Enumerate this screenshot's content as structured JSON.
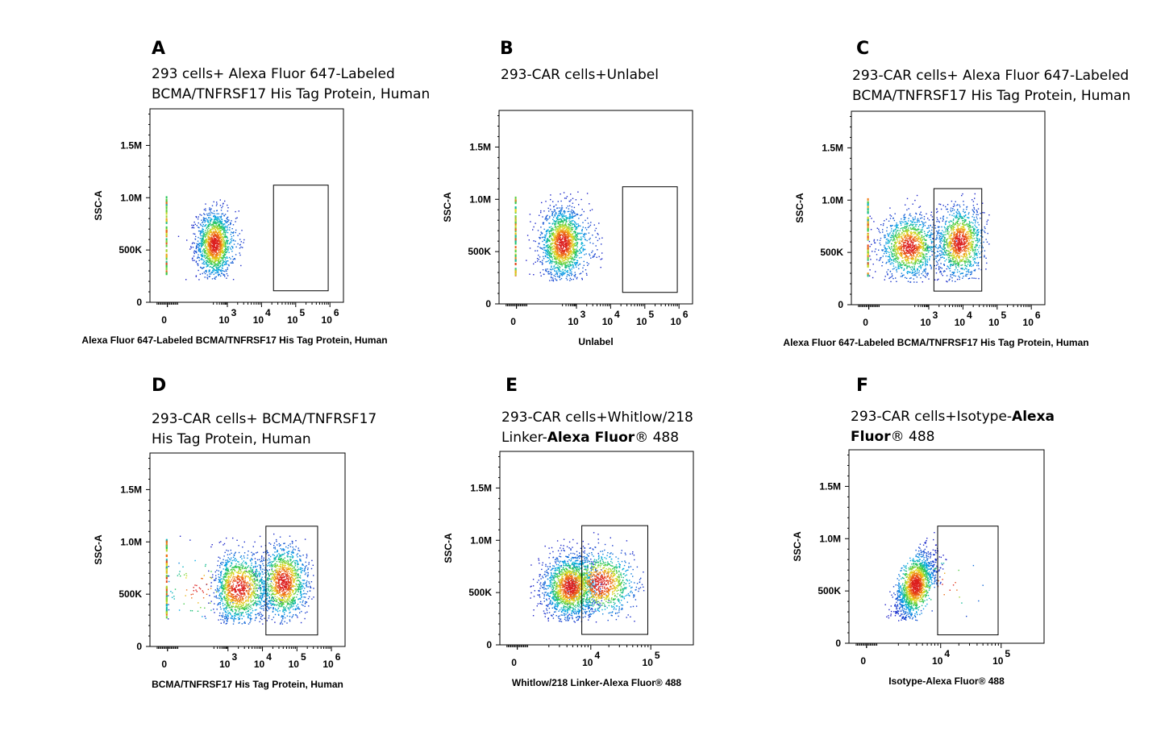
{
  "chart_data": [
    {
      "type": "scatter",
      "panel": "A",
      "title_lines": [
        "293 cells+ Alexa Fluor 647-Labeled",
        "BCMA/TNFRSF17 His Tag Protein, Human"
      ],
      "xlabel": "Alexa Fluor 647-Labeled BCMA/TNFRSF17 His Tag Protein, Human",
      "ylabel": "SSC-A",
      "x_scale": "biexponential",
      "x_ticks": [
        {
          "v": 0,
          "base": "0",
          "exp": ""
        },
        {
          "v": 3,
          "base": "10",
          "exp": "3"
        },
        {
          "v": 4,
          "base": "10",
          "exp": "4"
        },
        {
          "v": 5,
          "base": "10",
          "exp": "5"
        },
        {
          "v": 6,
          "base": "10",
          "exp": "6"
        }
      ],
      "y_ticks": [
        "0",
        "500K",
        "1.0M",
        "1.5M"
      ],
      "ylim": [
        0,
        1850000
      ],
      "gate": {
        "x": [
          4.35,
          5.95
        ],
        "y": [
          110000,
          1120000
        ]
      },
      "populations": [
        {
          "cx": 2.35,
          "cy": 560000,
          "sx": 0.45,
          "sy": 160000,
          "n": 1500,
          "xmin": 0.0,
          "xmax": 3.5
        }
      ]
    },
    {
      "type": "scatter",
      "panel": "B",
      "title_lines": [
        "293-CAR cells+Unlabel"
      ],
      "xlabel": "Unlabel",
      "ylabel": "SSC-A",
      "x_scale": "biexponential",
      "x_ticks": [
        {
          "v": 0,
          "base": "0",
          "exp": ""
        },
        {
          "v": 3,
          "base": "10",
          "exp": "3"
        },
        {
          "v": 4,
          "base": "10",
          "exp": "4"
        },
        {
          "v": 5,
          "base": "10",
          "exp": "5"
        },
        {
          "v": 6,
          "base": "10",
          "exp": "6"
        }
      ],
      "y_ticks": [
        "0",
        "500K",
        "1.0M",
        "1.5M"
      ],
      "ylim": [
        0,
        1850000
      ],
      "gate": {
        "x": [
          4.35,
          5.95
        ],
        "y": [
          110000,
          1120000
        ]
      },
      "populations": [
        {
          "cx": 2.3,
          "cy": 580000,
          "sx": 0.55,
          "sy": 170000,
          "n": 1700,
          "xmin": 0.0,
          "xmax": 3.8
        }
      ]
    },
    {
      "type": "scatter",
      "panel": "C",
      "title_lines": [
        "293-CAR cells+ Alexa Fluor 647-Labeled",
        "BCMA/TNFRSF17 His Tag Protein, Human"
      ],
      "xlabel": "Alexa Fluor 647-Labeled BCMA/TNFRSF17 His Tag Protein, Human",
      "ylabel": "SSC-A",
      "x_scale": "biexponential",
      "x_ticks": [
        {
          "v": 0,
          "base": "0",
          "exp": ""
        },
        {
          "v": 3,
          "base": "10",
          "exp": "3"
        },
        {
          "v": 4,
          "base": "10",
          "exp": "4"
        },
        {
          "v": 5,
          "base": "10",
          "exp": "5"
        },
        {
          "v": 6,
          "base": "10",
          "exp": "6"
        }
      ],
      "y_ticks": [
        "0",
        "500K",
        "1.0M",
        "1.5M"
      ],
      "ylim": [
        0,
        1850000
      ],
      "gate": {
        "x": [
          3.15,
          4.55
        ],
        "y": [
          130000,
          1110000
        ]
      },
      "populations": [
        {
          "cx": 2.0,
          "cy": 560000,
          "sx": 0.7,
          "sy": 150000,
          "n": 1300,
          "xmin": 0.0,
          "xmax": 4.8
        },
        {
          "cx": 3.9,
          "cy": 600000,
          "sx": 0.35,
          "sy": 170000,
          "n": 1200,
          "xmin": 0.0,
          "xmax": 4.8
        }
      ]
    },
    {
      "type": "scatter",
      "panel": "D",
      "title_lines": [
        "293-CAR cells+ BCMA/TNFRSF17",
        "His Tag Protein, Human"
      ],
      "xlabel": "BCMA/TNFRSF17 His Tag Protein, Human",
      "ylabel": "SSC-A",
      "x_scale": "biexponential",
      "x_ticks": [
        {
          "v": 0,
          "base": "0",
          "exp": ""
        },
        {
          "v": 3,
          "base": "10",
          "exp": "3"
        },
        {
          "v": 4,
          "base": "10",
          "exp": "4"
        },
        {
          "v": 5,
          "base": "10",
          "exp": "5"
        },
        {
          "v": 6,
          "base": "10",
          "exp": "6"
        }
      ],
      "y_ticks": [
        "0",
        "500K",
        "1.0M",
        "1.5M"
      ],
      "ylim": [
        0,
        1850000
      ],
      "gate": {
        "x": [
          4.1,
          5.6
        ],
        "y": [
          110000,
          1150000
        ]
      },
      "populations": [
        {
          "cx": 3.3,
          "cy": 560000,
          "sx": 0.45,
          "sy": 170000,
          "n": 1300,
          "xmin": 0.0,
          "xmax": 5.5
        },
        {
          "cx": 4.6,
          "cy": 620000,
          "sx": 0.35,
          "sy": 180000,
          "n": 1300,
          "xmin": 0.0,
          "xmax": 5.5
        },
        {
          "cx": 1.5,
          "cy": 560000,
          "sx": 0.9,
          "sy": 170000,
          "n": 90,
          "xmin": 0.0,
          "xmax": 5.5
        }
      ]
    },
    {
      "type": "scatter",
      "panel": "E",
      "title_lines": [
        {
          "plain": "293-CAR cells+Whitlow/218"
        },
        {
          "plain": "Linker-",
          "bold": "Alexa Fluor",
          "tail": "® 488"
        }
      ],
      "xlabel": "Whitlow/218 Linker-Alexa Fluor® 488",
      "ylabel": "SSC-A",
      "x_scale": "biexponential",
      "x_ticks": [
        {
          "v": 0,
          "base": "0",
          "exp": ""
        },
        {
          "v": 4,
          "base": "10",
          "exp": "4"
        },
        {
          "v": 5,
          "base": "10",
          "exp": "5"
        }
      ],
      "y_ticks": [
        "0",
        "500K",
        "1.0M",
        "1.5M"
      ],
      "ylim": [
        0,
        1850000
      ],
      "gate": {
        "x": [
          3.85,
          4.95
        ],
        "y": [
          100000,
          1140000
        ]
      },
      "populations": [
        {
          "cx": 3.65,
          "cy": 560000,
          "sx": 0.22,
          "sy": 150000,
          "n": 1700,
          "xmin": 2.8,
          "xmax": 4.9
        },
        {
          "cx": 4.15,
          "cy": 590000,
          "sx": 0.3,
          "sy": 160000,
          "n": 1000,
          "xmin": 2.8,
          "xmax": 4.9
        }
      ]
    },
    {
      "type": "scatter",
      "panel": "F",
      "title_lines": [
        {
          "plain": "293-CAR cells+Isotype-",
          "bold": "Alexa"
        },
        {
          "plain": "",
          "bold": "Fluor",
          "tail": "® 488"
        }
      ],
      "xlabel": "Isotype-Alexa Fluor® 488",
      "ylabel": "SSC-A",
      "x_scale": "biexponential",
      "x_ticks": [
        {
          "v": 0,
          "base": "0",
          "exp": ""
        },
        {
          "v": 4,
          "base": "10",
          "exp": "4"
        },
        {
          "v": 5,
          "base": "10",
          "exp": "5"
        }
      ],
      "y_ticks": [
        "0",
        "500K",
        "1.0M",
        "1.5M"
      ],
      "ylim": [
        0,
        1850000
      ],
      "gate": {
        "x": [
          3.95,
          4.95
        ],
        "y": [
          80000,
          1120000
        ]
      },
      "populations": [
        {
          "cx": 3.58,
          "cy": 560000,
          "sx": 0.16,
          "sy": 160000,
          "n": 1600,
          "xmin": 2.8,
          "xmax": 4.9,
          "corr": 0.6
        },
        {
          "cx": 4.1,
          "cy": 560000,
          "sx": 0.3,
          "sy": 150000,
          "n": 30,
          "xmin": 2.8,
          "xmax": 4.9
        }
      ]
    }
  ]
}
